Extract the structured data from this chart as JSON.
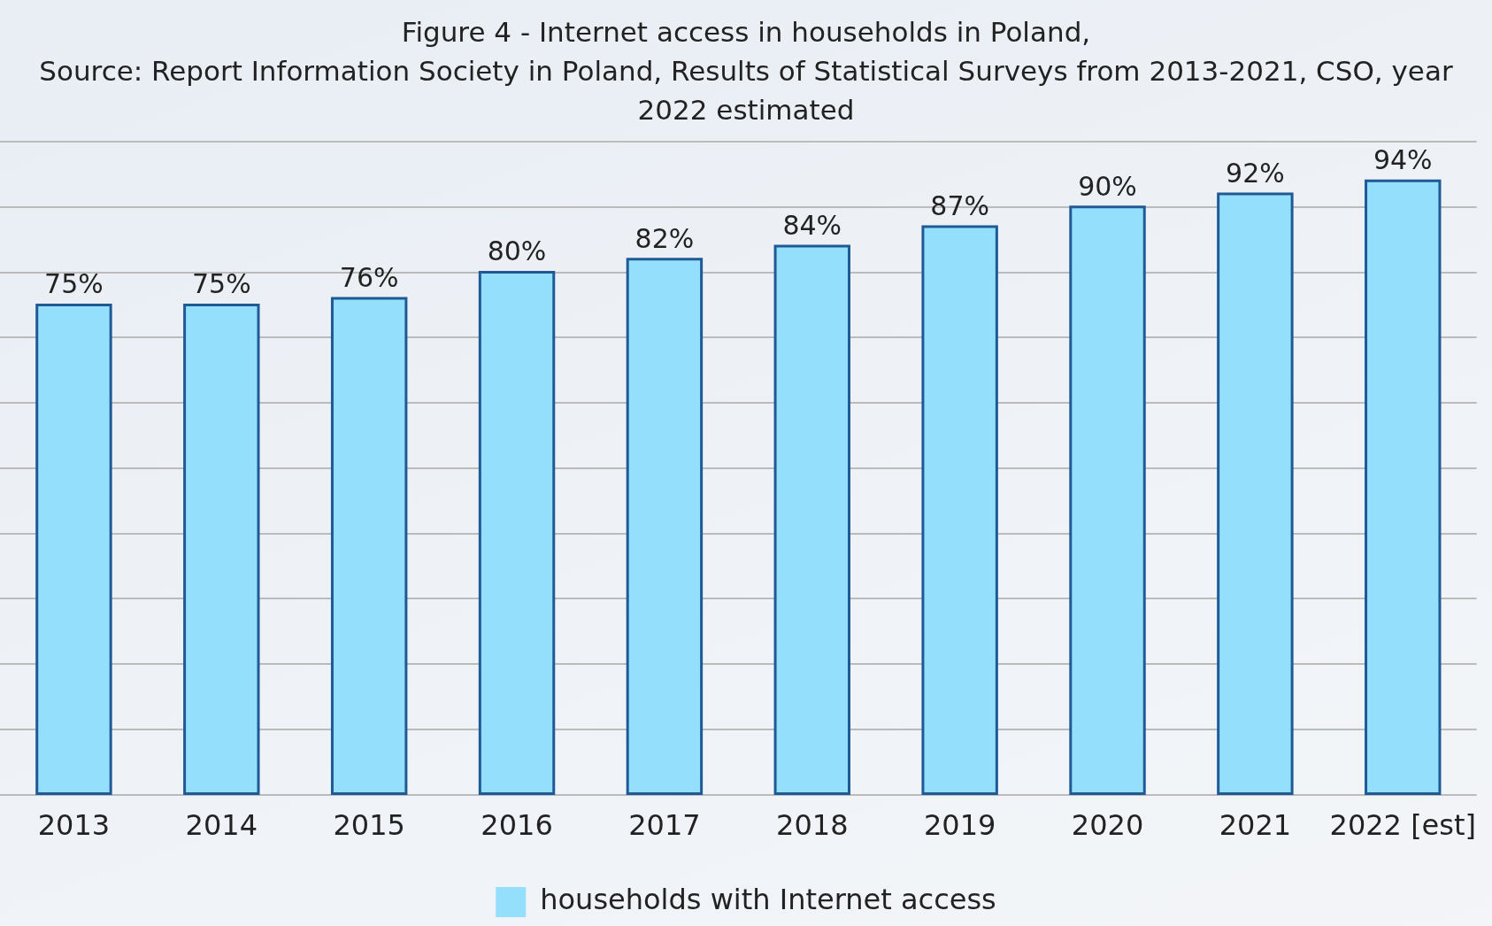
{
  "chart_data": {
    "type": "bar",
    "title": "Figure 4 - Internet access in households in Poland,",
    "subtitle": "Source: Report Information Society in Poland, Results of Statistical Surveys from 2013-2021, CSO, year 2022 estimated",
    "categories": [
      "2013",
      "2014",
      "2015",
      "2016",
      "2017",
      "2018",
      "2019",
      "2020",
      "2021",
      "2022 [est]"
    ],
    "series": [
      {
        "name": "households with Internet access",
        "color": "#94e0fc",
        "values": [
          75,
          75,
          76,
          80,
          82,
          84,
          87,
          90,
          92,
          94
        ],
        "value_labels": [
          "75%",
          "75%",
          "76%",
          "80%",
          "82%",
          "84%",
          "87%",
          "90%",
          "92%",
          "94%"
        ]
      }
    ],
    "ylim": [
      0,
      100
    ],
    "tick_labels": "x",
    "grid": "y",
    "legend": "bottom"
  }
}
